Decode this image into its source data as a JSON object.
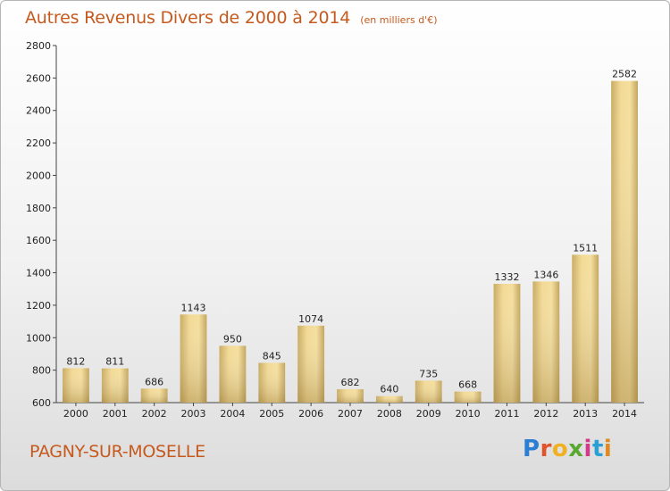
{
  "chart_data": {
    "type": "bar",
    "title": "Autres Revenus Divers de 2000 à 2014",
    "unit": "(en milliers d'€)",
    "categories": [
      "2000",
      "2001",
      "2002",
      "2003",
      "2004",
      "2005",
      "2006",
      "2007",
      "2008",
      "2009",
      "2010",
      "2011",
      "2012",
      "2013",
      "2014"
    ],
    "values": [
      812,
      811,
      686,
      1143,
      950,
      845,
      1074,
      682,
      640,
      735,
      668,
      1332,
      1346,
      1511,
      2582
    ],
    "ylim": [
      600,
      2800
    ],
    "yticks": [
      600,
      800,
      1000,
      1200,
      1400,
      1600,
      1800,
      2000,
      2200,
      2400,
      2600,
      2800
    ],
    "grid": false,
    "bar_color": "#f0d48c"
  },
  "footer": {
    "commune": "PAGNY-SUR-MOSELLE",
    "logo": "Proxiti",
    "logo_colors": [
      "#2a7fd4",
      "#e0522a",
      "#f0b020",
      "#5aa832",
      "#d43a8c",
      "#2aa0d4",
      "#e08a20"
    ]
  }
}
